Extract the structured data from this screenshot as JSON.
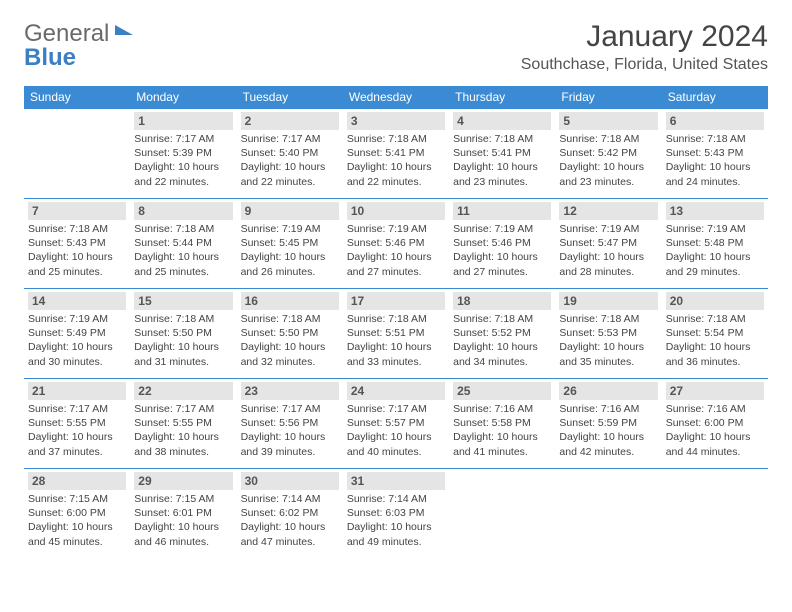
{
  "brand": {
    "part1": "General",
    "part2": "Blue"
  },
  "title": "January 2024",
  "location": "Southchase, Florida, United States",
  "colors": {
    "header_bg": "#3b8bd4",
    "header_text": "#ffffff",
    "daynum_bg": "#e5e5e5",
    "border": "#3b8bd4",
    "text": "#444444"
  },
  "weekdays": [
    "Sunday",
    "Monday",
    "Tuesday",
    "Wednesday",
    "Thursday",
    "Friday",
    "Saturday"
  ],
  "weeks": [
    [
      null,
      {
        "n": "1",
        "sr": "Sunrise: 7:17 AM",
        "ss": "Sunset: 5:39 PM",
        "dl": "Daylight: 10 hours and 22 minutes."
      },
      {
        "n": "2",
        "sr": "Sunrise: 7:17 AM",
        "ss": "Sunset: 5:40 PM",
        "dl": "Daylight: 10 hours and 22 minutes."
      },
      {
        "n": "3",
        "sr": "Sunrise: 7:18 AM",
        "ss": "Sunset: 5:41 PM",
        "dl": "Daylight: 10 hours and 22 minutes."
      },
      {
        "n": "4",
        "sr": "Sunrise: 7:18 AM",
        "ss": "Sunset: 5:41 PM",
        "dl": "Daylight: 10 hours and 23 minutes."
      },
      {
        "n": "5",
        "sr": "Sunrise: 7:18 AM",
        "ss": "Sunset: 5:42 PM",
        "dl": "Daylight: 10 hours and 23 minutes."
      },
      {
        "n": "6",
        "sr": "Sunrise: 7:18 AM",
        "ss": "Sunset: 5:43 PM",
        "dl": "Daylight: 10 hours and 24 minutes."
      }
    ],
    [
      {
        "n": "7",
        "sr": "Sunrise: 7:18 AM",
        "ss": "Sunset: 5:43 PM",
        "dl": "Daylight: 10 hours and 25 minutes."
      },
      {
        "n": "8",
        "sr": "Sunrise: 7:18 AM",
        "ss": "Sunset: 5:44 PM",
        "dl": "Daylight: 10 hours and 25 minutes."
      },
      {
        "n": "9",
        "sr": "Sunrise: 7:19 AM",
        "ss": "Sunset: 5:45 PM",
        "dl": "Daylight: 10 hours and 26 minutes."
      },
      {
        "n": "10",
        "sr": "Sunrise: 7:19 AM",
        "ss": "Sunset: 5:46 PM",
        "dl": "Daylight: 10 hours and 27 minutes."
      },
      {
        "n": "11",
        "sr": "Sunrise: 7:19 AM",
        "ss": "Sunset: 5:46 PM",
        "dl": "Daylight: 10 hours and 27 minutes."
      },
      {
        "n": "12",
        "sr": "Sunrise: 7:19 AM",
        "ss": "Sunset: 5:47 PM",
        "dl": "Daylight: 10 hours and 28 minutes."
      },
      {
        "n": "13",
        "sr": "Sunrise: 7:19 AM",
        "ss": "Sunset: 5:48 PM",
        "dl": "Daylight: 10 hours and 29 minutes."
      }
    ],
    [
      {
        "n": "14",
        "sr": "Sunrise: 7:19 AM",
        "ss": "Sunset: 5:49 PM",
        "dl": "Daylight: 10 hours and 30 minutes."
      },
      {
        "n": "15",
        "sr": "Sunrise: 7:18 AM",
        "ss": "Sunset: 5:50 PM",
        "dl": "Daylight: 10 hours and 31 minutes."
      },
      {
        "n": "16",
        "sr": "Sunrise: 7:18 AM",
        "ss": "Sunset: 5:50 PM",
        "dl": "Daylight: 10 hours and 32 minutes."
      },
      {
        "n": "17",
        "sr": "Sunrise: 7:18 AM",
        "ss": "Sunset: 5:51 PM",
        "dl": "Daylight: 10 hours and 33 minutes."
      },
      {
        "n": "18",
        "sr": "Sunrise: 7:18 AM",
        "ss": "Sunset: 5:52 PM",
        "dl": "Daylight: 10 hours and 34 minutes."
      },
      {
        "n": "19",
        "sr": "Sunrise: 7:18 AM",
        "ss": "Sunset: 5:53 PM",
        "dl": "Daylight: 10 hours and 35 minutes."
      },
      {
        "n": "20",
        "sr": "Sunrise: 7:18 AM",
        "ss": "Sunset: 5:54 PM",
        "dl": "Daylight: 10 hours and 36 minutes."
      }
    ],
    [
      {
        "n": "21",
        "sr": "Sunrise: 7:17 AM",
        "ss": "Sunset: 5:55 PM",
        "dl": "Daylight: 10 hours and 37 minutes."
      },
      {
        "n": "22",
        "sr": "Sunrise: 7:17 AM",
        "ss": "Sunset: 5:55 PM",
        "dl": "Daylight: 10 hours and 38 minutes."
      },
      {
        "n": "23",
        "sr": "Sunrise: 7:17 AM",
        "ss": "Sunset: 5:56 PM",
        "dl": "Daylight: 10 hours and 39 minutes."
      },
      {
        "n": "24",
        "sr": "Sunrise: 7:17 AM",
        "ss": "Sunset: 5:57 PM",
        "dl": "Daylight: 10 hours and 40 minutes."
      },
      {
        "n": "25",
        "sr": "Sunrise: 7:16 AM",
        "ss": "Sunset: 5:58 PM",
        "dl": "Daylight: 10 hours and 41 minutes."
      },
      {
        "n": "26",
        "sr": "Sunrise: 7:16 AM",
        "ss": "Sunset: 5:59 PM",
        "dl": "Daylight: 10 hours and 42 minutes."
      },
      {
        "n": "27",
        "sr": "Sunrise: 7:16 AM",
        "ss": "Sunset: 6:00 PM",
        "dl": "Daylight: 10 hours and 44 minutes."
      }
    ],
    [
      {
        "n": "28",
        "sr": "Sunrise: 7:15 AM",
        "ss": "Sunset: 6:00 PM",
        "dl": "Daylight: 10 hours and 45 minutes."
      },
      {
        "n": "29",
        "sr": "Sunrise: 7:15 AM",
        "ss": "Sunset: 6:01 PM",
        "dl": "Daylight: 10 hours and 46 minutes."
      },
      {
        "n": "30",
        "sr": "Sunrise: 7:14 AM",
        "ss": "Sunset: 6:02 PM",
        "dl": "Daylight: 10 hours and 47 minutes."
      },
      {
        "n": "31",
        "sr": "Sunrise: 7:14 AM",
        "ss": "Sunset: 6:03 PM",
        "dl": "Daylight: 10 hours and 49 minutes."
      },
      null,
      null,
      null
    ]
  ]
}
